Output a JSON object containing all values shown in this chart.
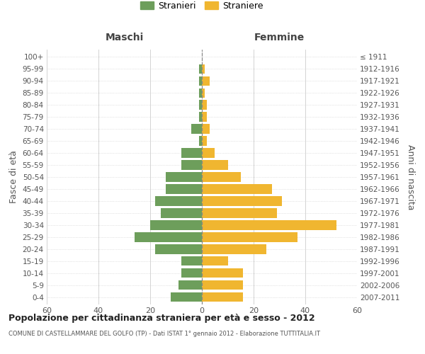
{
  "age_groups": [
    "0-4",
    "5-9",
    "10-14",
    "15-19",
    "20-24",
    "25-29",
    "30-34",
    "35-39",
    "40-44",
    "45-49",
    "50-54",
    "55-59",
    "60-64",
    "65-69",
    "70-74",
    "75-79",
    "80-84",
    "85-89",
    "90-94",
    "95-99",
    "100+"
  ],
  "birth_years": [
    "2007-2011",
    "2002-2006",
    "1997-2001",
    "1992-1996",
    "1987-1991",
    "1982-1986",
    "1977-1981",
    "1972-1976",
    "1967-1971",
    "1962-1966",
    "1957-1961",
    "1952-1956",
    "1947-1951",
    "1942-1946",
    "1937-1941",
    "1932-1936",
    "1927-1931",
    "1922-1926",
    "1917-1921",
    "1912-1916",
    "≤ 1911"
  ],
  "males": [
    12,
    9,
    8,
    8,
    18,
    26,
    20,
    16,
    18,
    14,
    14,
    8,
    8,
    1,
    4,
    1,
    1,
    1,
    1,
    1,
    0
  ],
  "females": [
    16,
    16,
    16,
    10,
    25,
    37,
    52,
    29,
    31,
    27,
    15,
    10,
    5,
    2,
    3,
    2,
    2,
    1,
    3,
    1,
    0
  ],
  "male_color": "#6d9e5b",
  "female_color": "#f0b630",
  "center_line_color": "#888888",
  "grid_color": "#cccccc",
  "title": "Popolazione per cittadinanza straniera per età e sesso - 2012",
  "subtitle": "COMUNE DI CASTELLAMMARE DEL GOLFO (TP) - Dati ISTAT 1° gennaio 2012 - Elaborazione TUTTITALIA.IT",
  "ylabel_left": "Fasce di età",
  "ylabel_right": "Anni di nascita",
  "xlabel_left": "Maschi",
  "xlabel_right": "Femmine",
  "legend_male": "Stranieri",
  "legend_female": "Straniere",
  "xlim": 60,
  "background_color": "#ffffff"
}
